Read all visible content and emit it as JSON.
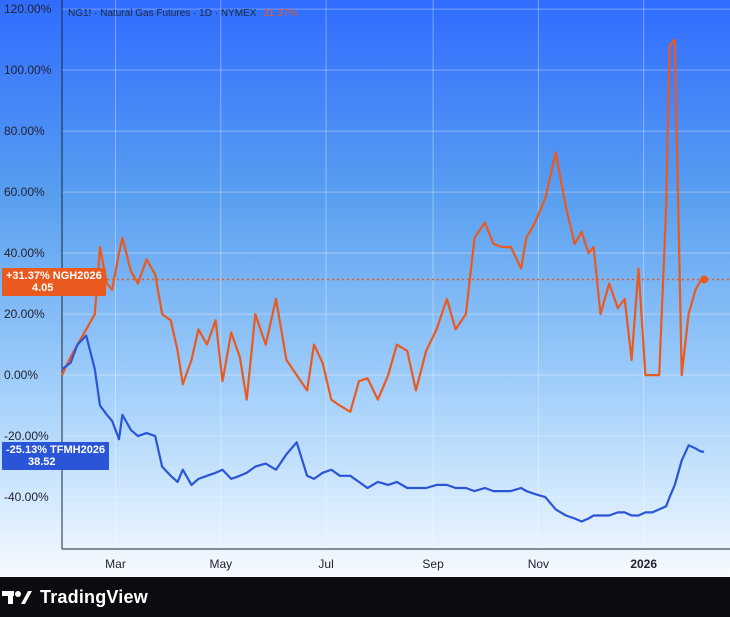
{
  "legend": {
    "title": "NG1! · Natural Gas Futures · 1D · NYMEX",
    "change": "31.37%"
  },
  "badges": {
    "ngh": {
      "pct": "+31.37%",
      "ticker": "NGH2026",
      "price": "4.05"
    },
    "tfmh": {
      "pct": "-25.13%",
      "ticker": "TFMH2026",
      "price": "38.52"
    }
  },
  "footer": {
    "brand": "TradingView"
  },
  "colors": {
    "ngh_series": "#ea5a1f",
    "tfmh_series": "#2a55d6",
    "background_top": "#2f6cff",
    "background_bottom": "#f7fbff"
  },
  "chart_data": {
    "type": "line",
    "title": "NG1! · Natural Gas Futures · 1D · NYMEX",
    "xlabel": "",
    "ylabel": "",
    "x_ticks": [
      "Mar",
      "May",
      "Jul",
      "Sep",
      "Nov",
      "2026"
    ],
    "y_ticks": [
      "120.00%",
      "100.00%",
      "80.00%",
      "60.00%",
      "40.00%",
      "20.00%",
      "0.00%",
      "-20.00%",
      "-40.00%"
    ],
    "ylim": [
      -57,
      123
    ],
    "xlim": [
      "2025-01-29",
      "2026-02-20"
    ],
    "grid": true,
    "legend_position": "top-left",
    "series": [
      {
        "name": "NGH2026",
        "color": "#ea5a1f",
        "x": [
          "2025-01-29",
          "2025-02-03",
          "2025-02-07",
          "2025-02-12",
          "2025-02-17",
          "2025-02-20",
          "2025-02-24",
          "2025-02-27",
          "2025-03-03",
          "2025-03-05",
          "2025-03-10",
          "2025-03-14",
          "2025-03-19",
          "2025-03-24",
          "2025-03-28",
          "2025-04-02",
          "2025-04-06",
          "2025-04-09",
          "2025-04-14",
          "2025-04-18",
          "2025-04-23",
          "2025-04-28",
          "2025-05-02",
          "2025-05-07",
          "2025-05-12",
          "2025-05-16",
          "2025-05-21",
          "2025-05-27",
          "2025-06-02",
          "2025-06-08",
          "2025-06-14",
          "2025-06-20",
          "2025-06-24",
          "2025-06-29",
          "2025-07-04",
          "2025-07-09",
          "2025-07-15",
          "2025-07-20",
          "2025-07-25",
          "2025-07-31",
          "2025-08-06",
          "2025-08-11",
          "2025-08-17",
          "2025-08-22",
          "2025-08-28",
          "2025-09-03",
          "2025-09-09",
          "2025-09-14",
          "2025-09-20",
          "2025-09-25",
          "2025-10-01",
          "2025-10-06",
          "2025-10-11",
          "2025-10-16",
          "2025-10-22",
          "2025-10-25",
          "2025-10-30",
          "2025-11-05",
          "2025-11-11",
          "2025-11-17",
          "2025-11-22",
          "2025-11-26",
          "2025-11-30",
          "2025-12-03",
          "2025-12-07",
          "2025-12-12",
          "2025-12-17",
          "2025-12-21",
          "2025-12-25",
          "2025-12-29",
          "2026-01-02",
          "2026-01-06",
          "2026-01-10",
          "2026-01-14",
          "2026-01-16",
          "2026-01-19",
          "2026-01-23",
          "2026-01-27",
          "2026-01-31",
          "2026-02-03",
          "2026-02-05"
        ],
        "values": [
          0,
          6,
          10,
          15,
          20,
          42,
          30,
          28,
          40,
          45,
          34,
          30,
          38,
          33,
          20,
          18,
          8,
          -3,
          5,
          15,
          10,
          18,
          -2,
          14,
          6,
          -8,
          20,
          10,
          25,
          5,
          0,
          -5,
          10,
          4,
          -8,
          -10,
          -12,
          -2,
          -1,
          -8,
          0,
          10,
          8,
          -5,
          8,
          15,
          25,
          15,
          20,
          45,
          50,
          43,
          42,
          42,
          35,
          45,
          50,
          58,
          73,
          55,
          43,
          47,
          40,
          42,
          20,
          30,
          22,
          25,
          5,
          35,
          0,
          0,
          0,
          55,
          108,
          110,
          0,
          20,
          28,
          31,
          31.37
        ]
      },
      {
        "name": "TFMH2026",
        "color": "#2a55d6",
        "x": [
          "2025-01-29",
          "2025-02-03",
          "2025-02-07",
          "2025-02-12",
          "2025-02-17",
          "2025-02-20",
          "2025-02-24",
          "2025-02-27",
          "2025-03-03",
          "2025-03-05",
          "2025-03-10",
          "2025-03-14",
          "2025-03-19",
          "2025-03-24",
          "2025-03-28",
          "2025-04-02",
          "2025-04-06",
          "2025-04-09",
          "2025-04-14",
          "2025-04-18",
          "2025-04-23",
          "2025-04-28",
          "2025-05-02",
          "2025-05-07",
          "2025-05-12",
          "2025-05-16",
          "2025-05-21",
          "2025-05-27",
          "2025-06-02",
          "2025-06-08",
          "2025-06-14",
          "2025-06-20",
          "2025-06-24",
          "2025-06-29",
          "2025-07-04",
          "2025-07-09",
          "2025-07-15",
          "2025-07-20",
          "2025-07-25",
          "2025-07-31",
          "2025-08-06",
          "2025-08-11",
          "2025-08-17",
          "2025-08-22",
          "2025-08-28",
          "2025-09-03",
          "2025-09-09",
          "2025-09-14",
          "2025-09-20",
          "2025-09-25",
          "2025-10-01",
          "2025-10-06",
          "2025-10-11",
          "2025-10-16",
          "2025-10-22",
          "2025-10-25",
          "2025-10-30",
          "2025-11-05",
          "2025-11-11",
          "2025-11-17",
          "2025-11-22",
          "2025-11-26",
          "2025-11-30",
          "2025-12-03",
          "2025-12-07",
          "2025-12-12",
          "2025-12-17",
          "2025-12-21",
          "2025-12-25",
          "2025-12-29",
          "2026-01-02",
          "2026-01-06",
          "2026-01-10",
          "2026-01-14",
          "2026-01-16",
          "2026-01-19",
          "2026-01-23",
          "2026-01-27",
          "2026-01-31",
          "2026-02-03",
          "2026-02-05"
        ],
        "values": [
          2,
          4,
          10,
          13,
          2,
          -10,
          -13,
          -15,
          -21,
          -13,
          -18,
          -20,
          -19,
          -20,
          -30,
          -33,
          -35,
          -31,
          -36,
          -34,
          -33,
          -32,
          -31,
          -34,
          -33,
          -32,
          -30,
          -29,
          -31,
          -26,
          -22,
          -33,
          -34,
          -32,
          -31,
          -33,
          -33,
          -35,
          -37,
          -35,
          -36,
          -35,
          -37,
          -37,
          -37,
          -36,
          -36,
          -37,
          -37,
          -38,
          -37,
          -38,
          -38,
          -38,
          -37,
          -38,
          -39,
          -40,
          -44,
          -46,
          -47,
          -48,
          -47,
          -46,
          -46,
          -46,
          -45,
          -45,
          -46,
          -46,
          -45,
          -45,
          -44,
          -43,
          -40,
          -36,
          -28,
          -23,
          -24,
          -25,
          -25.13
        ]
      }
    ]
  }
}
